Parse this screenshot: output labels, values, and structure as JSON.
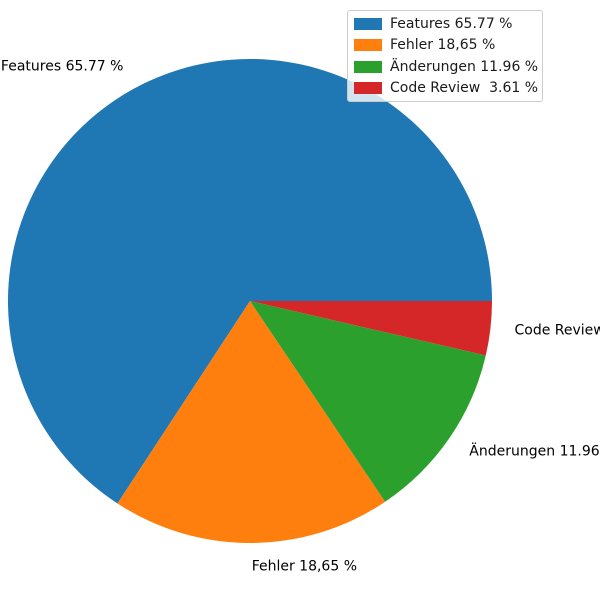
{
  "chart_data": {
    "type": "pie",
    "title": "",
    "labels": [
      "Features 65.77 %",
      "Fehler 18,65 %",
      "Änderungen 11.96 %",
      "Code Review  3.61 %"
    ],
    "values": [
      65.77,
      18.65,
      11.96,
      3.61
    ],
    "colors": [
      "#1f77b4",
      "#ff7f0e",
      "#2ca02c",
      "#d62728"
    ],
    "start_angle": 0,
    "direction": "counterclockwise",
    "label_distance": 1.1,
    "legend_position": "upper right",
    "legend_border_color": "#cccccc",
    "background_color": "#ffffff",
    "text_color": "#000000"
  }
}
